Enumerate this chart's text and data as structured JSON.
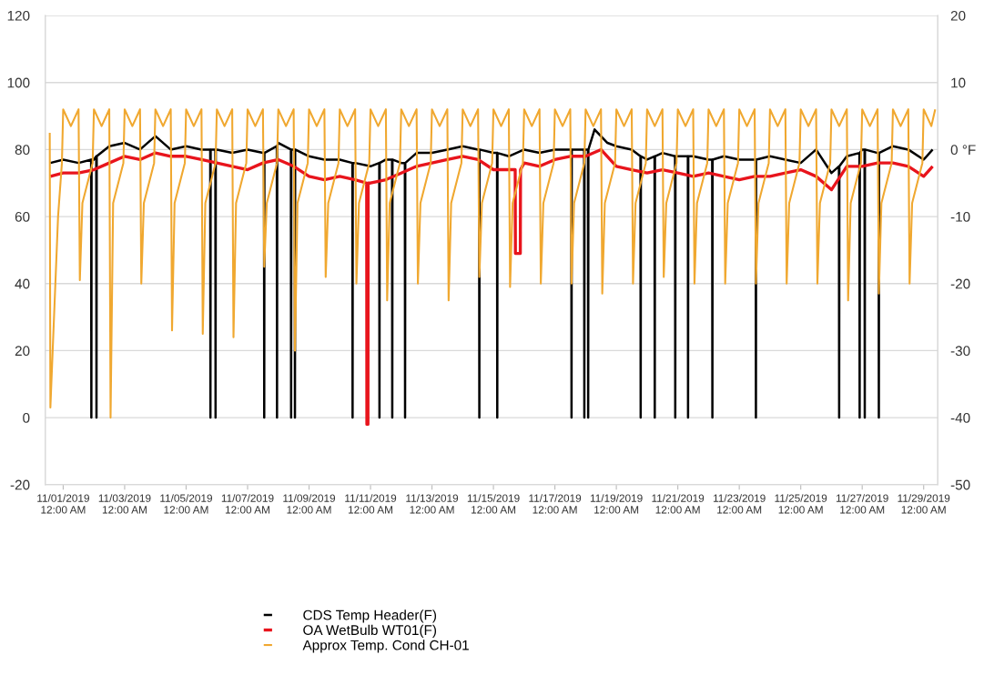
{
  "chart_data": {
    "type": "line",
    "xlim": [
      "2019-10-31T10:00",
      "2019-11-29T11:00"
    ],
    "xticks": [
      {
        "value": "2019-11-01",
        "label": "11/01/2019\n12:00 AM"
      },
      {
        "value": "2019-11-03",
        "label": "11/03/2019\n12:00 AM"
      },
      {
        "value": "2019-11-05",
        "label": "11/05/2019\n12:00 AM"
      },
      {
        "value": "2019-11-07",
        "label": "11/07/2019\n12:00 AM"
      },
      {
        "value": "2019-11-09",
        "label": "11/09/2019\n12:00 AM"
      },
      {
        "value": "2019-11-11",
        "label": "11/11/2019\n12:00 AM"
      },
      {
        "value": "2019-11-13",
        "label": "11/13/2019\n12:00 AM"
      },
      {
        "value": "2019-11-15",
        "label": "11/15/2019\n12:00 AM"
      },
      {
        "value": "2019-11-17",
        "label": "11/17/2019\n12:00 AM"
      },
      {
        "value": "2019-11-19",
        "label": "11/19/2019\n12:00 AM"
      },
      {
        "value": "2019-11-21",
        "label": "11/21/2019\n12:00 AM"
      },
      {
        "value": "2019-11-23",
        "label": "11/23/2019\n12:00 AM"
      },
      {
        "value": "2019-11-25",
        "label": "11/25/2019\n12:00 AM"
      },
      {
        "value": "2019-11-27",
        "label": "11/27/2019\n12:00 AM"
      },
      {
        "value": "2019-11-29",
        "label": "11/29/2019\n12:00 AM"
      }
    ],
    "ylim": [
      -20,
      120
    ],
    "yticks": [
      -20,
      0,
      20,
      40,
      60,
      80,
      100,
      120
    ],
    "y2lim": [
      -50,
      20
    ],
    "y2ticks": [
      -50,
      -40,
      -30,
      -20,
      -10,
      {
        "value": 0,
        "label": "0 °F"
      },
      10,
      20
    ],
    "grid": "y",
    "legend": "bottom",
    "line_style": "solid",
    "series": [
      {
        "name": "CDS Temp Header(F)",
        "color": "#000000",
        "axis": "y",
        "x": [
          "2019-10-31T14:00",
          "2019-11-01T00:00",
          "2019-11-01T12:00",
          "2019-11-01T21:50",
          "2019-11-01T22:00",
          "2019-11-01T22:10",
          "2019-11-02T00:00",
          "2019-11-02T01:50",
          "2019-11-02T02:00",
          "2019-11-02T02:10",
          "2019-11-02T12:00",
          "2019-11-03T00:00",
          "2019-11-03T12:00",
          "2019-11-04T00:00",
          "2019-11-04T12:00",
          "2019-11-05T00:00",
          "2019-11-05T12:00",
          "2019-11-05T18:50",
          "2019-11-05T19:00",
          "2019-11-05T19:10",
          "2019-11-05T22:50",
          "2019-11-05T23:00",
          "2019-11-05T23:10",
          "2019-11-06T00:00",
          "2019-11-06T12:00",
          "2019-11-07T00:00",
          "2019-11-07T12:00",
          "2019-11-07T12:50",
          "2019-11-07T13:00",
          "2019-11-07T13:10",
          "2019-11-07T22:50",
          "2019-11-07T23:00",
          "2019-11-07T23:10",
          "2019-11-08T00:00",
          "2019-11-08T09:50",
          "2019-11-08T10:00",
          "2019-11-08T10:10",
          "2019-11-08T12:00",
          "2019-11-08T12:50",
          "2019-11-08T13:00",
          "2019-11-08T13:10",
          "2019-11-09T00:00",
          "2019-11-09T12:00",
          "2019-11-10T00:00",
          "2019-11-10T09:50",
          "2019-11-10T10:00",
          "2019-11-10T10:10",
          "2019-11-10T12:00",
          "2019-11-11T00:00",
          "2019-11-11T06:50",
          "2019-11-11T07:00",
          "2019-11-11T07:10",
          "2019-11-11T12:00",
          "2019-11-11T16:50",
          "2019-11-11T17:00",
          "2019-11-11T17:10",
          "2019-11-12T00:00",
          "2019-11-12T02:50",
          "2019-11-12T03:00",
          "2019-11-12T03:10",
          "2019-11-12T12:00",
          "2019-11-13T00:00",
          "2019-11-13T12:00",
          "2019-11-14T00:00",
          "2019-11-14T12:00",
          "2019-11-14T12:50",
          "2019-11-14T13:00",
          "2019-11-14T13:10",
          "2019-11-15T00:00",
          "2019-11-15T02:50",
          "2019-11-15T03:00",
          "2019-11-15T03:10",
          "2019-11-15T12:00",
          "2019-11-16T00:00",
          "2019-11-16T12:00",
          "2019-11-17T00:00",
          "2019-11-17T12:00",
          "2019-11-17T12:50",
          "2019-11-17T13:00",
          "2019-11-17T13:10",
          "2019-11-17T22:50",
          "2019-11-17T23:00",
          "2019-11-17T23:10",
          "2019-11-18T00:00",
          "2019-11-18T01:50",
          "2019-11-18T02:00",
          "2019-11-18T02:10",
          "2019-11-18T07:00",
          "2019-11-18T17:00",
          "2019-11-19T00:00",
          "2019-11-19T12:00",
          "2019-11-19T18:50",
          "2019-11-19T19:00",
          "2019-11-19T19:10",
          "2019-11-20T00:00",
          "2019-11-20T05:50",
          "2019-11-20T06:00",
          "2019-11-20T06:10",
          "2019-11-20T12:00",
          "2019-11-20T21:50",
          "2019-11-20T22:00",
          "2019-11-20T22:10",
          "2019-11-21T00:00",
          "2019-11-21T07:50",
          "2019-11-21T08:00",
          "2019-11-21T08:10",
          "2019-11-21T12:00",
          "2019-11-22T00:00",
          "2019-11-22T02:50",
          "2019-11-22T03:00",
          "2019-11-22T03:10",
          "2019-11-22T12:00",
          "2019-11-23T00:00",
          "2019-11-23T12:00",
          "2019-11-23T12:50",
          "2019-11-23T13:00",
          "2019-11-23T13:10",
          "2019-11-24T00:00",
          "2019-11-24T12:00",
          "2019-11-25T00:00",
          "2019-11-25T12:00",
          "2019-11-26T00:00",
          "2019-11-26T05:50",
          "2019-11-26T06:00",
          "2019-11-26T06:10",
          "2019-11-26T12:00",
          "2019-11-26T21:50",
          "2019-11-26T22:00",
          "2019-11-26T22:10",
          "2019-11-27T00:00",
          "2019-11-27T01:50",
          "2019-11-27T02:00",
          "2019-11-27T02:10",
          "2019-11-27T12:00",
          "2019-11-27T12:50",
          "2019-11-27T13:00",
          "2019-11-27T13:10",
          "2019-11-28T00:00",
          "2019-11-28T12:00",
          "2019-11-29T00:00",
          "2019-11-29T07:00"
        ],
        "values": [
          76,
          77,
          76,
          77,
          0,
          77,
          77,
          78,
          0,
          78,
          81,
          82,
          80,
          84,
          80,
          81,
          80,
          80,
          0,
          80,
          80,
          0,
          80,
          80,
          79,
          80,
          79,
          79,
          0,
          79,
          81,
          0,
          81,
          82,
          80,
          0,
          80,
          80,
          80,
          0,
          80,
          78,
          77,
          77,
          76,
          0,
          76,
          76,
          75,
          76,
          0,
          76,
          77,
          77,
          0,
          77,
          76,
          76,
          0,
          76,
          79,
          79,
          80,
          81,
          80,
          80,
          0,
          80,
          79,
          79,
          0,
          79,
          78,
          80,
          79,
          80,
          80,
          80,
          0,
          80,
          80,
          0,
          80,
          80,
          80,
          0,
          80,
          86,
          82,
          81,
          80,
          78,
          0,
          78,
          77,
          78,
          0,
          78,
          79,
          78,
          0,
          78,
          78,
          78,
          0,
          78,
          78,
          77,
          77,
          0,
          77,
          78,
          77,
          77,
          77,
          0,
          77,
          78,
          77,
          76,
          80,
          73,
          75,
          0,
          75,
          78,
          79,
          0,
          79,
          80,
          80,
          0,
          80,
          79,
          79,
          0,
          79,
          81,
          80,
          77,
          80
        ]
      },
      {
        "name": "OA WetBulb WT01(F)",
        "color": "#e8141c",
        "axis": "y",
        "x": [
          "2019-10-31T14:00",
          "2019-11-01T00:00",
          "2019-11-01T12:00",
          "2019-11-02T00:00",
          "2019-11-02T12:00",
          "2019-11-03T00:00",
          "2019-11-03T12:00",
          "2019-11-04T00:00",
          "2019-11-04T12:00",
          "2019-11-05T00:00",
          "2019-11-05T12:00",
          "2019-11-06T00:00",
          "2019-11-06T12:00",
          "2019-11-07T00:00",
          "2019-11-07T12:00",
          "2019-11-08T00:00",
          "2019-11-08T12:00",
          "2019-11-09T00:00",
          "2019-11-09T12:00",
          "2019-11-10T00:00",
          "2019-11-10T12:00",
          "2019-11-10T21:00",
          "2019-11-10T21:10",
          "2019-11-10T22:00",
          "2019-11-10T22:10",
          "2019-11-11T00:00",
          "2019-11-11T12:00",
          "2019-11-12T00:00",
          "2019-11-12T12:00",
          "2019-11-13T00:00",
          "2019-11-13T12:00",
          "2019-11-14T00:00",
          "2019-11-14T12:00",
          "2019-11-15T00:00",
          "2019-11-15T12:00",
          "2019-11-15T17:00",
          "2019-11-15T17:10",
          "2019-11-15T21:00",
          "2019-11-15T21:10",
          "2019-11-16T00:00",
          "2019-11-16T12:00",
          "2019-11-17T00:00",
          "2019-11-17T12:00",
          "2019-11-18T00:00",
          "2019-11-18T12:00",
          "2019-11-19T00:00",
          "2019-11-19T12:00",
          "2019-11-20T00:00",
          "2019-11-20T12:00",
          "2019-11-21T00:00",
          "2019-11-21T12:00",
          "2019-11-22T00:00",
          "2019-11-22T12:00",
          "2019-11-23T00:00",
          "2019-11-23T12:00",
          "2019-11-24T00:00",
          "2019-11-24T12:00",
          "2019-11-25T00:00",
          "2019-11-25T12:00",
          "2019-11-26T00:00",
          "2019-11-26T12:00",
          "2019-11-27T00:00",
          "2019-11-27T12:00",
          "2019-11-28T00:00",
          "2019-11-28T12:00",
          "2019-11-29T00:00",
          "2019-11-29T07:00"
        ],
        "values": [
          72,
          73,
          73,
          74,
          76,
          78,
          77,
          79,
          78,
          78,
          77,
          76,
          75,
          74,
          76,
          77,
          75,
          72,
          71,
          72,
          71,
          70,
          -2,
          -2,
          70,
          70,
          71,
          73,
          75,
          76,
          77,
          78,
          77,
          74,
          74,
          74,
          49,
          49,
          74,
          76,
          75,
          77,
          78,
          78,
          80,
          75,
          74,
          73,
          74,
          73,
          72,
          73,
          72,
          71,
          72,
          72,
          73,
          74,
          72,
          68,
          75,
          75,
          76,
          76,
          75,
          72,
          75
        ]
      },
      {
        "name": "Approx Temp. Cond CH-01",
        "color": "#f0a830",
        "axis": "y2",
        "x": [
          "2019-10-31T13:30",
          "2019-10-31T14:00",
          "2019-10-31T20:00",
          "2019-10-31T23:00",
          "2019-11-01T00:00",
          "2019-11-01T06:00",
          "2019-11-01T12:00",
          "2019-11-01T13:00",
          "2019-11-01T15:00",
          "2019-11-01T23:00",
          "2019-11-02T00:00",
          "2019-11-02T06:00",
          "2019-11-02T12:00",
          "2019-11-02T13:00",
          "2019-11-02T15:00",
          "2019-11-02T23:00",
          "2019-11-03T00:00",
          "2019-11-03T06:00",
          "2019-11-03T12:00",
          "2019-11-03T13:00",
          "2019-11-03T15:00",
          "2019-11-03T23:00",
          "2019-11-04T00:00",
          "2019-11-04T06:00",
          "2019-11-04T12:00",
          "2019-11-04T13:00",
          "2019-11-04T15:00",
          "2019-11-04T23:00",
          "2019-11-05T00:00",
          "2019-11-05T06:00",
          "2019-11-05T12:00",
          "2019-11-05T13:00",
          "2019-11-05T15:00",
          "2019-11-05T23:00",
          "2019-11-06T00:00",
          "2019-11-06T06:00",
          "2019-11-06T12:00",
          "2019-11-06T13:00",
          "2019-11-06T15:00",
          "2019-11-06T23:00",
          "2019-11-07T00:00",
          "2019-11-07T06:00",
          "2019-11-07T12:00",
          "2019-11-07T13:00",
          "2019-11-07T15:00",
          "2019-11-07T23:00",
          "2019-11-08T00:00",
          "2019-11-08T06:00",
          "2019-11-08T12:00",
          "2019-11-08T13:00",
          "2019-11-08T15:00",
          "2019-11-08T23:00",
          "2019-11-09T00:00",
          "2019-11-09T06:00",
          "2019-11-09T12:00",
          "2019-11-09T13:00",
          "2019-11-09T15:00",
          "2019-11-09T23:00",
          "2019-11-10T00:00",
          "2019-11-10T06:00",
          "2019-11-10T12:00",
          "2019-11-10T13:00",
          "2019-11-10T15:00",
          "2019-11-10T23:00",
          "2019-11-11T00:00",
          "2019-11-11T06:00",
          "2019-11-11T12:00",
          "2019-11-11T13:00",
          "2019-11-11T15:00",
          "2019-11-11T23:00",
          "2019-11-12T00:00",
          "2019-11-12T06:00",
          "2019-11-12T12:00",
          "2019-11-12T13:00",
          "2019-11-12T15:00",
          "2019-11-12T23:00",
          "2019-11-13T00:00",
          "2019-11-13T06:00",
          "2019-11-13T12:00",
          "2019-11-13T13:00",
          "2019-11-13T15:00",
          "2019-11-13T23:00",
          "2019-11-14T00:00",
          "2019-11-14T06:00",
          "2019-11-14T12:00",
          "2019-11-14T13:00",
          "2019-11-14T15:00",
          "2019-11-14T23:00",
          "2019-11-15T00:00",
          "2019-11-15T06:00",
          "2019-11-15T12:00",
          "2019-11-15T13:00",
          "2019-11-15T15:00",
          "2019-11-15T23:00",
          "2019-11-16T00:00",
          "2019-11-16T06:00",
          "2019-11-16T12:00",
          "2019-11-16T13:00",
          "2019-11-16T15:00",
          "2019-11-16T23:00",
          "2019-11-17T00:00",
          "2019-11-17T06:00",
          "2019-11-17T12:00",
          "2019-11-17T13:00",
          "2019-11-17T15:00",
          "2019-11-17T23:00",
          "2019-11-18T00:00",
          "2019-11-18T06:00",
          "2019-11-18T12:00",
          "2019-11-18T13:00",
          "2019-11-18T15:00",
          "2019-11-18T23:00",
          "2019-11-19T00:00",
          "2019-11-19T06:00",
          "2019-11-19T12:00",
          "2019-11-19T13:00",
          "2019-11-19T15:00",
          "2019-11-19T23:00",
          "2019-11-20T00:00",
          "2019-11-20T06:00",
          "2019-11-20T12:00",
          "2019-11-20T13:00",
          "2019-11-20T15:00",
          "2019-11-20T23:00",
          "2019-11-21T00:00",
          "2019-11-21T06:00",
          "2019-11-21T12:00",
          "2019-11-21T13:00",
          "2019-11-21T15:00",
          "2019-11-21T23:00",
          "2019-11-22T00:00",
          "2019-11-22T06:00",
          "2019-11-22T12:00",
          "2019-11-22T13:00",
          "2019-11-22T15:00",
          "2019-11-22T23:00",
          "2019-11-23T00:00",
          "2019-11-23T06:00",
          "2019-11-23T12:00",
          "2019-11-23T13:00",
          "2019-11-23T15:00",
          "2019-11-23T23:00",
          "2019-11-24T00:00",
          "2019-11-24T06:00",
          "2019-11-24T12:00",
          "2019-11-24T13:00",
          "2019-11-24T15:00",
          "2019-11-24T23:00",
          "2019-11-25T00:00",
          "2019-11-25T06:00",
          "2019-11-25T12:00",
          "2019-11-25T13:00",
          "2019-11-25T15:00",
          "2019-11-25T23:00",
          "2019-11-26T00:00",
          "2019-11-26T06:00",
          "2019-11-26T12:00",
          "2019-11-26T13:00",
          "2019-11-26T15:00",
          "2019-11-26T23:00",
          "2019-11-27T00:00",
          "2019-11-27T06:00",
          "2019-11-27T12:00",
          "2019-11-27T13:00",
          "2019-11-27T15:00",
          "2019-11-27T23:00",
          "2019-11-28T00:00",
          "2019-11-28T06:00",
          "2019-11-28T12:00",
          "2019-11-28T13:00",
          "2019-11-28T15:00",
          "2019-11-28T23:00",
          "2019-11-29T00:00",
          "2019-11-29T06:00",
          "2019-11-29T09:00"
        ],
        "values": [
          2.5,
          -38.5,
          -10,
          -2,
          6,
          3.5,
          6,
          -19.5,
          -8,
          -2,
          6,
          3.5,
          6,
          -40,
          -8,
          -2,
          6,
          3.5,
          6,
          -20,
          -8,
          -2,
          6,
          3.5,
          6,
          -27,
          -8,
          -2,
          6,
          3.5,
          6,
          -27.5,
          -8,
          -2,
          6,
          3.5,
          6,
          -28,
          -8,
          -2,
          6,
          3.5,
          6,
          -17.5,
          -8,
          -2,
          6,
          3.5,
          6,
          -30,
          -8,
          -2,
          6,
          3.5,
          6,
          -19,
          -8,
          -2,
          6,
          3.5,
          6,
          -20,
          -8,
          -2,
          6,
          3.5,
          6,
          -22.5,
          -8,
          -2,
          6,
          3.5,
          6,
          -20,
          -8,
          -2,
          6,
          3.5,
          6,
          -22.5,
          -8,
          -2,
          6,
          3.5,
          6,
          -19,
          -8,
          -2,
          6,
          3.5,
          6,
          -20.5,
          -8,
          -2,
          6,
          3.5,
          6,
          -20,
          -8,
          -2,
          6,
          3.5,
          6,
          -20,
          -8,
          -2,
          6,
          3.5,
          6,
          -21.5,
          -8,
          -2,
          6,
          3.5,
          6,
          -20,
          -8,
          -2,
          6,
          3.5,
          6,
          -19,
          -8,
          -2,
          6,
          3.5,
          6,
          -20,
          -8,
          -2,
          6,
          3.5,
          6,
          -20,
          -8,
          -2,
          6,
          3.5,
          6,
          -20,
          -8,
          -2,
          6,
          3.5,
          6,
          -20,
          -8,
          -2,
          6,
          3.5,
          6,
          -20,
          -8,
          -2,
          6,
          3.5,
          6,
          -22.5,
          -8,
          -2,
          6,
          3.5,
          6,
          -21.5,
          -8,
          -2,
          6,
          3.5,
          6,
          -20,
          -8,
          -2,
          6,
          3.5,
          6
        ]
      }
    ]
  }
}
